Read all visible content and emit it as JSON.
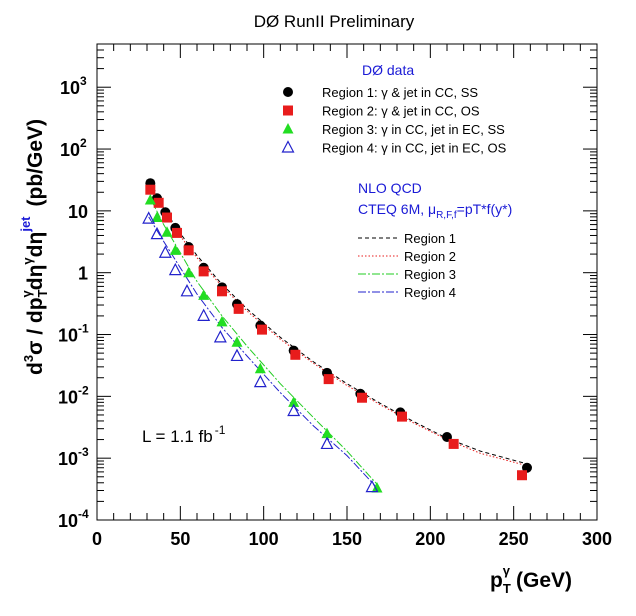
{
  "chart_data": {
    "type": "scatter",
    "title": "DØ RunII Preliminary",
    "xlabel": {
      "main": "p",
      "sub": "T",
      "sup": "γ",
      "unit": "(GeV)"
    },
    "ylabel": {
      "d3": "d",
      "three": "3",
      "sigma": "σ / dp",
      "subT": "T",
      "supg": "γ",
      "deta": "dη",
      "supg2": "γ",
      "deta2": "dη",
      "supjet": "jet",
      "unit": "(pb/GeV)"
    },
    "xlim": [
      0,
      300
    ],
    "ylim": [
      0.0001,
      5000
    ],
    "yscale": "log",
    "x_ticks": [
      "0",
      "50",
      "100",
      "150",
      "200",
      "250",
      "300"
    ],
    "y_ticks": [
      {
        "base": "10",
        "exp": "-4",
        "v": 0.0001
      },
      {
        "base": "10",
        "exp": "-3",
        "v": 0.001
      },
      {
        "base": "10",
        "exp": "-2",
        "v": 0.01
      },
      {
        "base": "10",
        "exp": "-1",
        "v": 0.1
      },
      {
        "base": "1",
        "exp": "",
        "v": 1
      },
      {
        "base": "10",
        "exp": "",
        "v": 10
      },
      {
        "base": "10",
        "exp": "2",
        "v": 100
      },
      {
        "base": "10",
        "exp": "3",
        "v": 1000
      }
    ],
    "data_legend_title": "DØ data",
    "theory_legend_title": "NLO QCD",
    "theory_legend_subtitle": {
      "a": "CTEQ 6M,  μ",
      "sub": "R,F,f",
      "b": "=pT*f(y*)"
    },
    "luminosity": {
      "text": "L = 1.1 fb",
      "sup": "-1"
    },
    "series": [
      {
        "name": "Region 1: γ & jet in CC, SS",
        "marker": "circle",
        "color": "#000000",
        "x": [
          32,
          36,
          41,
          47,
          55,
          64,
          75,
          84,
          98,
          118,
          138,
          158,
          182,
          210,
          258
        ],
        "y": [
          28,
          16,
          9.5,
          5.3,
          2.6,
          1.2,
          0.58,
          0.31,
          0.14,
          0.055,
          0.024,
          0.011,
          0.0055,
          0.0022,
          0.0007
        ]
      },
      {
        "name": "Region 2: γ & jet in CC, OS",
        "marker": "square",
        "color": "#e81c1c",
        "x": [
          32,
          37,
          42,
          48,
          55,
          64,
          75,
          85,
          99,
          119,
          139,
          159,
          183,
          214,
          255
        ],
        "y": [
          22,
          13.5,
          7.8,
          4.4,
          2.3,
          1.05,
          0.5,
          0.26,
          0.12,
          0.047,
          0.019,
          0.0095,
          0.0047,
          0.0017,
          0.00053
        ]
      },
      {
        "name": "Region 3: γ in CC, jet in EC, SS",
        "marker": "triangle",
        "color": "#22dd22",
        "x": [
          32,
          36,
          42,
          47,
          55,
          64,
          75,
          84,
          98,
          118,
          138,
          168
        ],
        "y": [
          15,
          7.8,
          4.5,
          2.3,
          1.0,
          0.43,
          0.16,
          0.075,
          0.028,
          0.008,
          0.0025,
          0.00033
        ]
      },
      {
        "name": "Region 4: γ in CC, jet in EC, OS",
        "marker": "triangle-open",
        "color": "#2222cc",
        "x": [
          31,
          36,
          41,
          47,
          54,
          64,
          74,
          84,
          98,
          118,
          138,
          165
        ],
        "y": [
          7.5,
          4.2,
          2.1,
          1.1,
          0.5,
          0.2,
          0.09,
          0.045,
          0.017,
          0.0058,
          0.0017,
          0.00034
        ]
      }
    ],
    "theory": [
      {
        "name": "Region 1",
        "color": "#000000",
        "dash": "4,3",
        "x": [
          32,
          40,
          50,
          60,
          75,
          90,
          110,
          130,
          150,
          170,
          190,
          210,
          230,
          260
        ],
        "y": [
          30,
          11,
          4.3,
          1.9,
          0.65,
          0.26,
          0.09,
          0.036,
          0.016,
          0.0077,
          0.0039,
          0.0021,
          0.0013,
          0.00078
        ]
      },
      {
        "name": "Region 2",
        "color": "#e81c1c",
        "dash": "1.5,2",
        "x": [
          32,
          40,
          50,
          60,
          75,
          90,
          110,
          130,
          150,
          170,
          190,
          210,
          230,
          260
        ],
        "y": [
          27,
          10,
          3.9,
          1.75,
          0.6,
          0.24,
          0.084,
          0.034,
          0.015,
          0.0073,
          0.0037,
          0.002,
          0.0012,
          0.00073
        ]
      },
      {
        "name": "Region 3",
        "color": "#22cc22",
        "dash": "8,2,2,2",
        "x": [
          32,
          40,
          50,
          60,
          75,
          90,
          110,
          130,
          150,
          168
        ],
        "y": [
          16,
          6,
          2.1,
          0.72,
          0.2,
          0.065,
          0.016,
          0.0045,
          0.0013,
          0.00038
        ]
      },
      {
        "name": "Region 4",
        "color": "#2222cc",
        "dash": "8,2,2,2",
        "x": [
          31,
          40,
          50,
          60,
          75,
          90,
          110,
          130,
          150,
          168
        ],
        "y": [
          8,
          3.2,
          1.2,
          0.45,
          0.13,
          0.045,
          0.0115,
          0.0033,
          0.0011,
          0.00033
        ]
      }
    ]
  }
}
